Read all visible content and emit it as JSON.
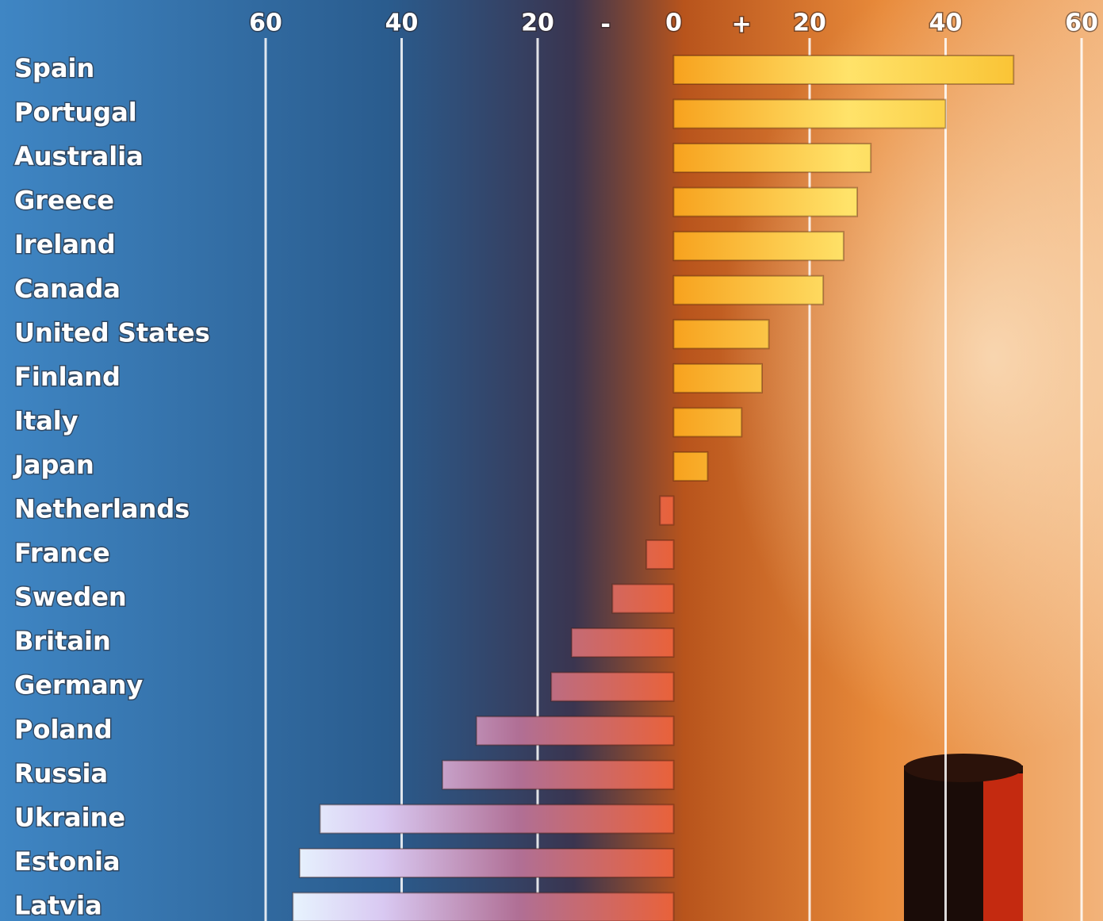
{
  "chart_data": {
    "type": "bar",
    "orientation": "horizontal",
    "categories": [
      "Spain",
      "Portugal",
      "Australia",
      "Greece",
      "Ireland",
      "Canada",
      "United States",
      "Finland",
      "Italy",
      "Japan",
      "Netherlands",
      "France",
      "Sweden",
      "Britain",
      "Germany",
      "Poland",
      "Russia",
      "Ukraine",
      "Estonia",
      "Latvia"
    ],
    "values": [
      50,
      40,
      29,
      27,
      25,
      22,
      14,
      13,
      10,
      5,
      -2,
      -4,
      -9,
      -15,
      -18,
      -29,
      -34,
      -52,
      -55,
      -56
    ],
    "xlim": [
      -60,
      60
    ],
    "xticks": [
      {
        "value": -60,
        "label": "60"
      },
      {
        "value": -40,
        "label": "40"
      },
      {
        "value": -20,
        "label": "20"
      },
      0,
      20,
      40,
      60
    ],
    "sign_labels": [
      "-",
      "+"
    ],
    "grid": true
  }
}
